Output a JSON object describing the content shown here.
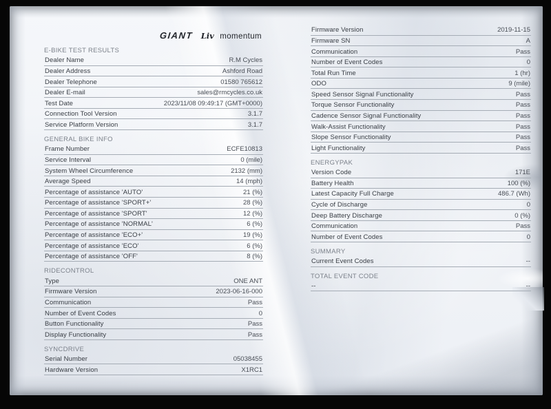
{
  "colors": {
    "background": "#060606",
    "paper": "#f3f5f9",
    "ink": "#383d44",
    "heading_ink": "#7c828b",
    "rule": "#a5acb5"
  },
  "logo": {
    "giant": "GIANT",
    "liv": "Liv",
    "momentum": "momentum"
  },
  "left_sections": [
    {
      "heading": "E-BIKE TEST RESULTS",
      "rows": [
        {
          "label": "Dealer Name",
          "value": "R.M Cycles"
        },
        {
          "label": "Dealer Address",
          "value": "Ashford Road"
        },
        {
          "label": "Dealer Telephone",
          "value": "01580 765612"
        },
        {
          "label": "Dealer E-mail",
          "value": "sales@rmcycles.co.uk"
        },
        {
          "label": "Test Date",
          "value": "2023/11/08 09:49:17 (GMT+0000)"
        },
        {
          "label": "Connection Tool Version",
          "value": "3.1.7"
        },
        {
          "label": "Service Platform Version",
          "value": "3.1.7"
        }
      ]
    },
    {
      "heading": "GENERAL BIKE INFO",
      "rows": [
        {
          "label": "Frame Number",
          "value": "ECFE10813"
        },
        {
          "label": "Service Interval",
          "value": "0 (mile)"
        },
        {
          "label": "System Wheel Circumference",
          "value": "2132 (mm)"
        },
        {
          "label": "Average Speed",
          "value": "14 (mph)"
        },
        {
          "label": "Percentage of assistance 'AUTO'",
          "value": "21 (%)"
        },
        {
          "label": "Percentage of assistance 'SPORT+'",
          "value": "28 (%)"
        },
        {
          "label": "Percentage of assistance 'SPORT'",
          "value": "12 (%)"
        },
        {
          "label": "Percentage of assistance 'NORMAL'",
          "value": "6 (%)"
        },
        {
          "label": "Percentage of assistance 'ECO+'",
          "value": "19 (%)"
        },
        {
          "label": "Percentage of assistance 'ECO'",
          "value": "6 (%)"
        },
        {
          "label": "Percentage of assistance 'OFF'",
          "value": "8 (%)"
        }
      ]
    },
    {
      "heading": "RIDECONTROL",
      "rows": [
        {
          "label": "Type",
          "value": "ONE ANT"
        },
        {
          "label": "Firmware Version",
          "value": "2023-06-16-000"
        },
        {
          "label": "Communication",
          "value": "Pass"
        },
        {
          "label": "Number of Event Codes",
          "value": "0"
        },
        {
          "label": "Button Functionality",
          "value": "Pass"
        },
        {
          "label": "Display Functionality",
          "value": "Pass"
        }
      ]
    },
    {
      "heading": "SYNCDRIVE",
      "rows": [
        {
          "label": "Serial Number",
          "value": "05038455"
        },
        {
          "label": "Hardware Version",
          "value": "X1RC1"
        }
      ]
    }
  ],
  "right_sections": [
    {
      "heading": null,
      "rows": [
        {
          "label": "Firmware Version",
          "value": "2019-11-15"
        },
        {
          "label": "Firmware SN",
          "value": "A"
        },
        {
          "label": "Communication",
          "value": "Pass"
        },
        {
          "label": "Number of Event Codes",
          "value": "0"
        },
        {
          "label": "Total Run Time",
          "value": "1 (hr)"
        },
        {
          "label": "ODO",
          "value": "9 (mile)"
        },
        {
          "label": "Speed Sensor Signal Functionality",
          "value": "Pass"
        },
        {
          "label": "Torque Sensor Functionality",
          "value": "Pass"
        },
        {
          "label": "Cadence Sensor Signal Functionality",
          "value": "Pass"
        },
        {
          "label": "Walk-Assist Functionality",
          "value": "Pass"
        },
        {
          "label": "Slope Sensor Functionality",
          "value": "Pass"
        },
        {
          "label": "Light Functionality",
          "value": "Pass"
        }
      ]
    },
    {
      "heading": "ENERGYPAK",
      "rows": [
        {
          "label": "Version Code",
          "value": "171E"
        },
        {
          "label": "Battery Health",
          "value": "100 (%)"
        },
        {
          "label": "Latest Capacity Full Charge",
          "value": "486.7 (Wh)"
        },
        {
          "label": "Cycle of Discharge",
          "value": "0"
        },
        {
          "label": "Deep Battery Discharge",
          "value": "0 (%)"
        },
        {
          "label": "Communication",
          "value": "Pass"
        },
        {
          "label": "Number of Event Codes",
          "value": "0"
        }
      ]
    },
    {
      "heading": "SUMMARY",
      "rows": [
        {
          "label": "Current Event Codes",
          "value": "--"
        }
      ]
    },
    {
      "heading": "TOTAL EVENT CODE",
      "rows": [
        {
          "label": "--",
          "value": "--"
        }
      ]
    }
  ]
}
